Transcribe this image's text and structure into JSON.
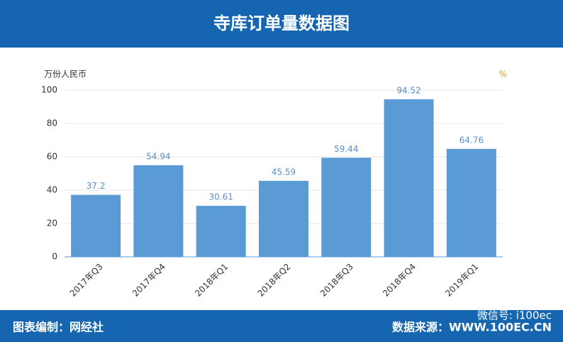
{
  "chart_data": {
    "type": "bar",
    "title": "寺库订单量数据图",
    "y_axis_label": "万份人民币",
    "right_axis_label": "%",
    "categories": [
      "2017年Q3",
      "2017年Q4",
      "2018年Q1",
      "2018年Q2",
      "2018年Q3",
      "2018年Q4",
      "2019年Q1"
    ],
    "values": [
      37.2,
      54.94,
      30.61,
      45.59,
      59.44,
      94.52,
      64.76
    ],
    "color": "#5b9bd5",
    "ylim": [
      0,
      100
    ],
    "yticks": [
      0,
      20,
      40,
      60,
      80,
      100
    ],
    "grid": true
  },
  "footer": {
    "left": "图表编制：网经社",
    "right": "数据来源：WWW.100EC.CN",
    "wechat": "微信号: i100ec"
  }
}
